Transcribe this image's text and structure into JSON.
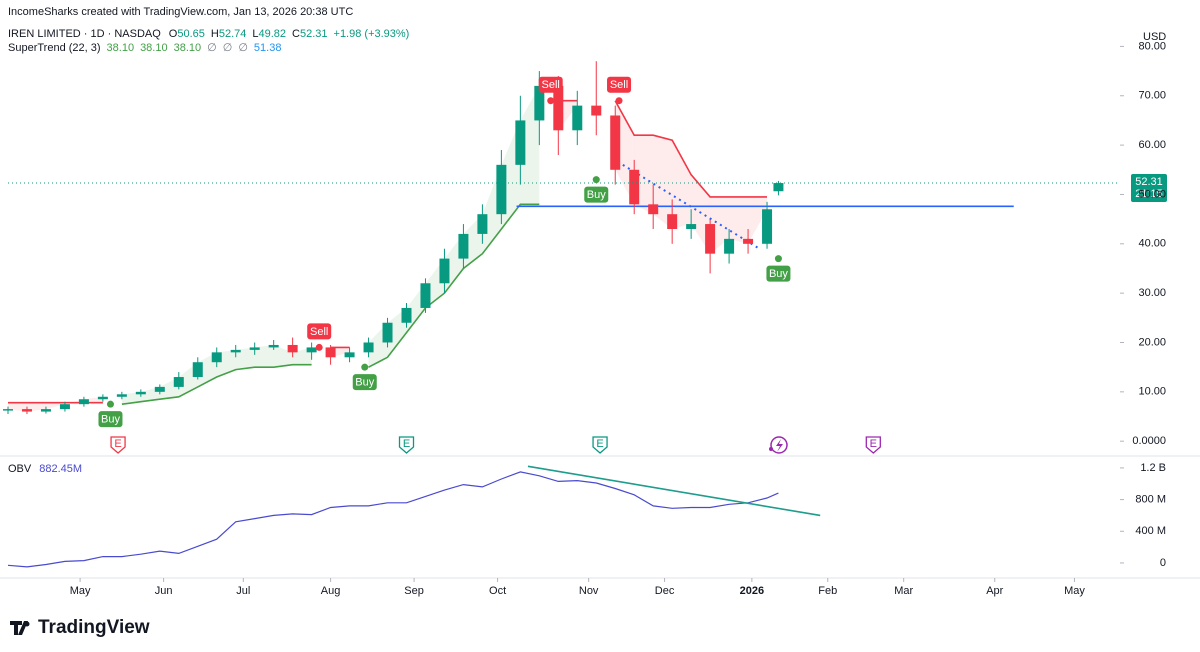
{
  "header": {
    "credit": "IncomeSharks created with TradingView.com, Jan 13, 2026 20:38 UTC",
    "symbol": "IREN LIMITED · 1D · NASDAQ",
    "ohlc": [
      {
        "label": "O",
        "value": "50.65"
      },
      {
        "label": "H",
        "value": "52.74"
      },
      {
        "label": "L",
        "value": "49.82"
      },
      {
        "label": "C",
        "value": "52.31"
      }
    ],
    "change": "+1.98 (+3.93%)",
    "indicator": "SuperTrend (22, 3)",
    "indicator_values": [
      "38.10",
      "38.10",
      "38.10",
      "∅",
      "∅",
      "∅",
      "51.38"
    ],
    "obv_name": "OBV",
    "obv_value": "882.45M",
    "currency": "USD",
    "countdown": "21:15",
    "brand": "TradingView"
  },
  "chart_data": [
    {
      "type": "candlestick",
      "xlim": [
        0,
        293
      ],
      "x": [
        0,
        5,
        10,
        15,
        20,
        25,
        30,
        35,
        40,
        45,
        50,
        55,
        60,
        65,
        70,
        75,
        80,
        85,
        90,
        95,
        100,
        105,
        110,
        115,
        120,
        125,
        130,
        135,
        140,
        145,
        150,
        155,
        160,
        165,
        170,
        175,
        180,
        185,
        190,
        195,
        200,
        203
      ],
      "open": [
        6.2,
        6.5,
        6,
        6.5,
        7.5,
        8.5,
        9,
        9.5,
        10,
        11,
        13,
        16,
        18,
        18.5,
        19,
        19.5,
        18,
        19,
        17,
        18,
        20,
        24,
        27,
        32,
        37,
        42,
        46,
        56,
        65,
        72,
        63,
        68,
        66,
        55,
        48,
        46,
        43,
        44,
        38,
        41,
        40,
        50.65
      ],
      "high": [
        7,
        7,
        7,
        8,
        9,
        9.5,
        10,
        10.5,
        11.5,
        14,
        17,
        19,
        19.5,
        20,
        20.5,
        21,
        20,
        19.5,
        19,
        21,
        25,
        28,
        33,
        39,
        44,
        48,
        59,
        70,
        75,
        74,
        71,
        77,
        68,
        57,
        52,
        49,
        47,
        45,
        43,
        43,
        48.5,
        52.74
      ],
      "low": [
        5.5,
        5.5,
        5.6,
        6,
        7,
        8,
        8.5,
        9,
        9.5,
        10.5,
        12.5,
        15,
        17,
        17.5,
        18.5,
        17,
        16.5,
        15.5,
        16,
        17,
        19,
        23,
        26,
        30,
        35,
        40,
        44,
        52,
        60,
        58,
        60,
        62,
        52,
        46,
        43,
        40,
        41,
        34,
        36,
        38,
        39,
        49.82
      ],
      "close": [
        6.5,
        6,
        6.5,
        7.5,
        8.5,
        9,
        9.5,
        10,
        11,
        13,
        16,
        18,
        18.5,
        19,
        19.5,
        18,
        19,
        17,
        18,
        20,
        24,
        27,
        32,
        37,
        42,
        46,
        56,
        65,
        72,
        63,
        68,
        66,
        55,
        48,
        46,
        43,
        44,
        38,
        41,
        40,
        47,
        52.31
      ],
      "up_color": "#089981",
      "down_color": "#f23645",
      "series": [
        {
          "name": "SuperTrend Down",
          "color": "#f23645",
          "values": [
            7.8,
            7.8,
            7.8,
            7.8,
            7.8,
            7.8,
            null,
            null,
            null,
            null,
            null,
            null,
            null,
            null,
            null,
            null,
            null,
            19,
            19,
            null,
            null,
            null,
            null,
            null,
            null,
            null,
            null,
            null,
            null,
            69,
            69,
            null,
            69,
            62,
            62,
            61,
            54,
            49.5,
            49.5,
            49.5,
            49.5,
            null
          ]
        },
        {
          "name": "SuperTrend Up",
          "color": "#43a047",
          "values": [
            null,
            null,
            null,
            null,
            null,
            null,
            7.5,
            8,
            8.5,
            9,
            11,
            13,
            14.5,
            15,
            15,
            15.5,
            15.5,
            null,
            null,
            15,
            17,
            22,
            27,
            30,
            35,
            38,
            43,
            48,
            48,
            null,
            null,
            53,
            null,
            null,
            null,
            null,
            null,
            null,
            null,
            null,
            null,
            37
          ]
        }
      ],
      "signals": [
        {
          "label": "Buy",
          "x": 27,
          "value": 7.5
        },
        {
          "label": "Sell",
          "x": 82,
          "value": 19
        },
        {
          "label": "Buy",
          "x": 94,
          "value": 15
        },
        {
          "label": "Sell",
          "x": 143,
          "value": 69
        },
        {
          "label": "Buy",
          "x": 155,
          "value": 53
        },
        {
          "label": "Sell",
          "x": 161,
          "value": 69
        },
        {
          "label": "Buy",
          "x": 203,
          "value": 37
        }
      ],
      "events": [
        {
          "label": "E",
          "x": 29,
          "color": "#f23645"
        },
        {
          "label": "E",
          "x": 105,
          "color": "#089981"
        },
        {
          "label": "E",
          "x": 156,
          "color": "#089981"
        },
        {
          "label": "E",
          "x": 228,
          "color": "#9c27b0"
        }
      ],
      "lines": [
        {
          "x": [
            134,
            265
          ],
          "values": [
            47.6,
            47.6
          ],
          "color": "#2962ff",
          "style": "solid"
        },
        {
          "x": [
            162,
            198
          ],
          "values": [
            56,
            39
          ],
          "color": "#2962ff",
          "style": "dotted"
        }
      ],
      "ylim": [
        -2.8,
        81.3
      ],
      "yticks": [
        {
          "value": 0,
          "label": "0.0000"
        },
        {
          "value": 10,
          "label": "10.00"
        },
        {
          "value": 20,
          "label": "20.00"
        },
        {
          "value": 30,
          "label": "30.00"
        },
        {
          "value": 40,
          "label": "40.00"
        },
        {
          "value": 50,
          "label": "50.00"
        },
        {
          "value": 60,
          "label": "60.00"
        },
        {
          "value": 70,
          "label": "70.00"
        },
        {
          "value": 80,
          "label": "80.00"
        }
      ],
      "grid": false
    },
    {
      "type": "line",
      "xlim": [
        0,
        293
      ],
      "x": [
        0,
        5,
        10,
        15,
        20,
        25,
        30,
        35,
        40,
        45,
        50,
        55,
        60,
        65,
        70,
        75,
        80,
        85,
        90,
        95,
        100,
        105,
        110,
        115,
        120,
        125,
        130,
        135,
        140,
        145,
        150,
        155,
        160,
        165,
        170,
        175,
        180,
        185,
        190,
        195,
        200,
        203
      ],
      "series": [
        {
          "name": "OBV",
          "color": "#4a4ad0",
          "values": [
            -30,
            -50,
            -20,
            20,
            30,
            80,
            80,
            110,
            150,
            120,
            210,
            300,
            520,
            560,
            600,
            620,
            610,
            700,
            720,
            720,
            760,
            760,
            840,
            920,
            990,
            960,
            1060,
            1150,
            1100,
            1030,
            1040,
            1010,
            940,
            860,
            720,
            690,
            700,
            700,
            740,
            760,
            820,
            882.45
          ]
        }
      ],
      "lines": [
        {
          "x": [
            137,
            214
          ],
          "values": [
            1220,
            600
          ],
          "color": "#1e9c8c",
          "style": "solid"
        }
      ],
      "ylim": [
        -190,
        1300
      ],
      "yticks": [
        0,
        {
          "value": 400,
          "label": "400 M"
        },
        {
          "value": 800,
          "label": "800 M"
        },
        {
          "value": 1200,
          "label": "1.2 B"
        }
      ],
      "xticks": [
        {
          "value": 19,
          "label": "May"
        },
        {
          "value": 41,
          "label": "Jun"
        },
        {
          "value": 62,
          "label": "Jul"
        },
        {
          "value": 85,
          "label": "Aug"
        },
        {
          "value": 107,
          "label": "Sep"
        },
        {
          "value": 129,
          "label": "Oct"
        },
        {
          "value": 153,
          "label": "Nov"
        },
        {
          "value": 173,
          "label": "Dec"
        },
        {
          "value": 196,
          "label": "2026"
        },
        {
          "value": 216,
          "label": "Feb"
        },
        {
          "value": 236,
          "label": "Mar"
        },
        {
          "value": 260,
          "label": "Apr"
        },
        {
          "value": 281,
          "label": "May"
        }
      ],
      "grid": false
    }
  ]
}
